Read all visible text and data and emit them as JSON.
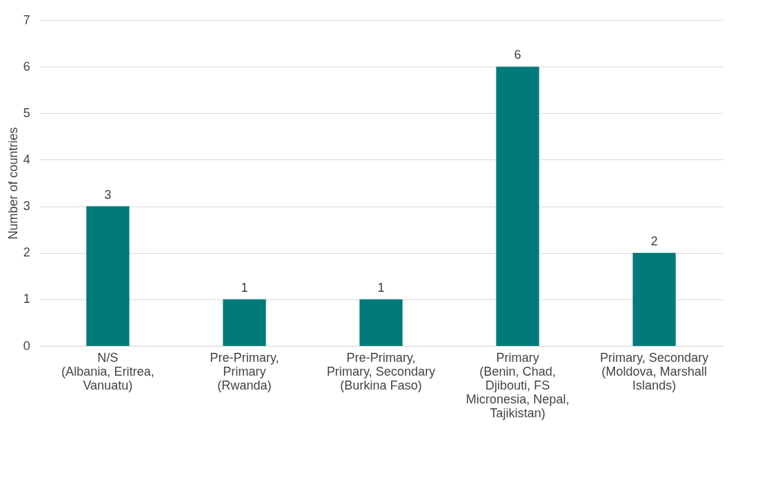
{
  "chart_data": {
    "type": "bar",
    "ylabel": "Number of countries",
    "categories": [
      "N/S (Albania, Eritrea, Vanuatu)",
      "Pre-Primary, Primary (Rwanda)",
      "Pre-Primary, Primary, Secondary (Burkina Faso)",
      "Primary (Benin, Chad, Djibouti, FS Micronesia, Nepal, Tajikistan)",
      "Primary, Secondary (Moldova, Marshall Islands)"
    ],
    "values": [
      3,
      1,
      1,
      6,
      2
    ],
    "color": "#007a7a",
    "ylim": [
      0,
      7
    ],
    "yticks": [
      0,
      1,
      2,
      3,
      4,
      5,
      6,
      7
    ],
    "grid": "y",
    "data_labels": true
  }
}
